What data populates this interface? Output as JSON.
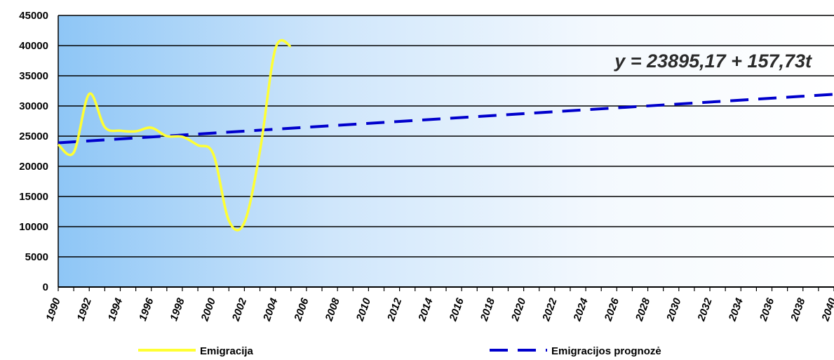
{
  "chart_data": {
    "type": "line",
    "x": [
      1990,
      1991,
      1992,
      1993,
      1994,
      1995,
      1996,
      1997,
      1998,
      1999,
      2000,
      2001,
      2002,
      2003,
      2004,
      2005
    ],
    "series": [
      {
        "name": "Emigracija",
        "color": "#ffff33",
        "style": "solid",
        "values": [
          23600,
          22300,
          32000,
          26500,
          25900,
          25800,
          26400,
          25000,
          24900,
          23500,
          22000,
          11000,
          10700,
          22500,
          39500,
          39900
        ]
      },
      {
        "name": "Emigracijos prognozė",
        "color": "#0000cc",
        "style": "dashed",
        "x_range": [
          1990,
          2040
        ],
        "intercept": 23895.17,
        "slope": 157.73
      }
    ],
    "ylim": [
      0,
      45000
    ],
    "y_ticks": [
      0,
      5000,
      10000,
      15000,
      20000,
      25000,
      30000,
      35000,
      40000,
      45000
    ],
    "xlim": [
      1990,
      2040
    ],
    "x_ticks": [
      1990,
      1992,
      1994,
      1996,
      1998,
      2000,
      2002,
      2004,
      2006,
      2008,
      2010,
      2012,
      2014,
      2016,
      2018,
      2020,
      2022,
      2024,
      2026,
      2028,
      2030,
      2032,
      2034,
      2036,
      2038,
      2040
    ],
    "annotation": "y = 23895,17 + 157,73t",
    "grid": true,
    "legend_position": "bottom",
    "plot_background": {
      "from": "#8ec6f6",
      "to": "#ffffff"
    }
  }
}
